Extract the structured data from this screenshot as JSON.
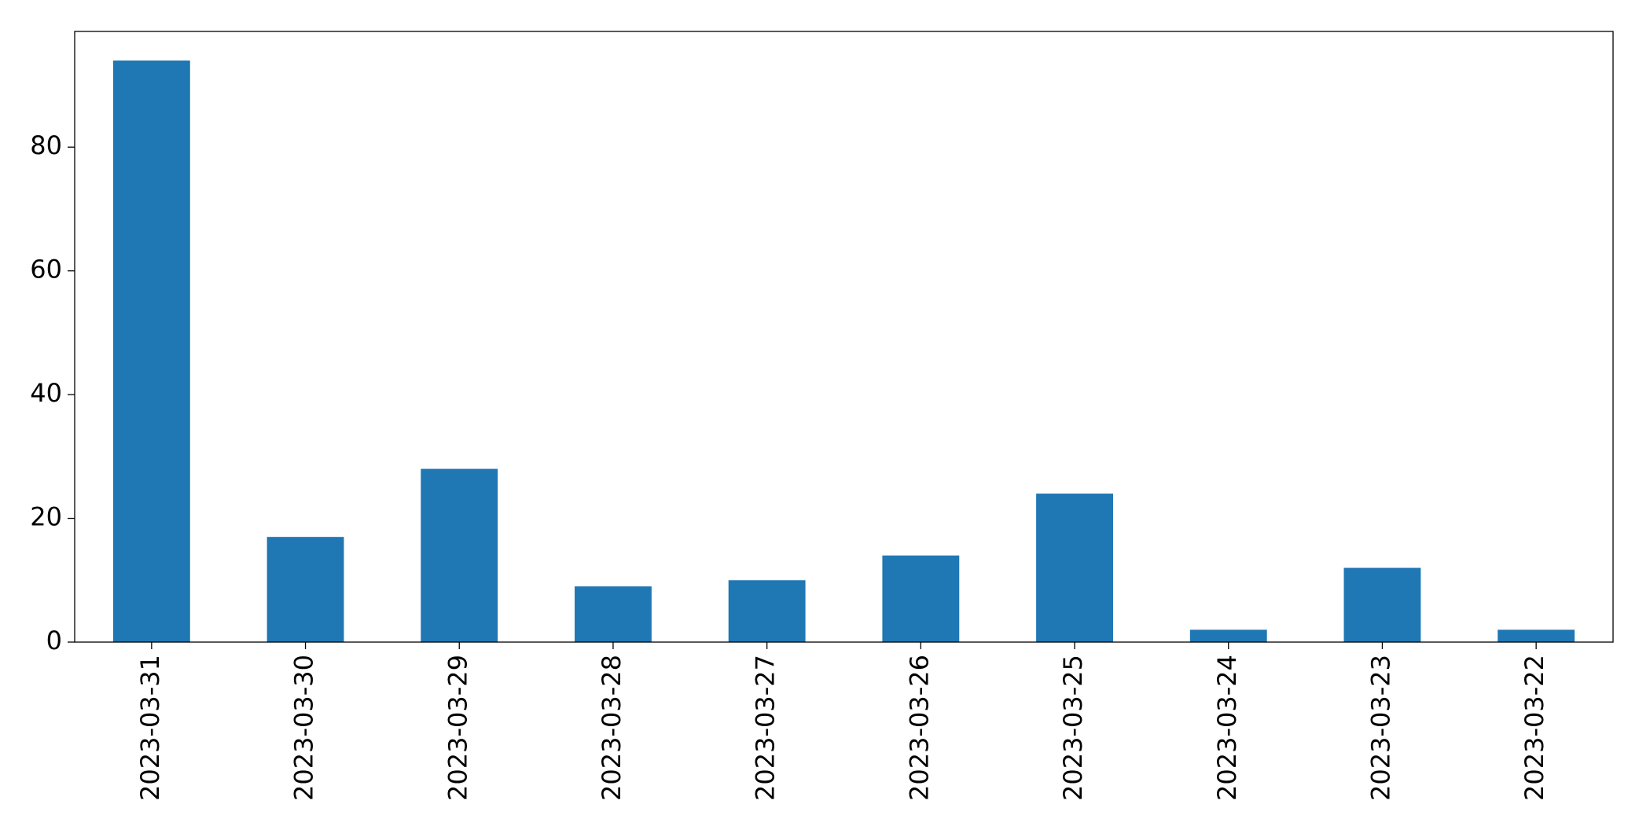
{
  "chart_data": {
    "type": "bar",
    "categories": [
      "2023-03-31",
      "2023-03-30",
      "2023-03-29",
      "2023-03-28",
      "2023-03-27",
      "2023-03-26",
      "2023-03-25",
      "2023-03-24",
      "2023-03-23",
      "2023-03-22"
    ],
    "values": [
      94,
      17,
      28,
      9,
      10,
      14,
      24,
      2,
      12,
      2
    ],
    "color": "#1f77b4",
    "ylim": [
      0,
      98.7
    ],
    "yticks": [
      0,
      20,
      40,
      60,
      80
    ],
    "grid": false
  }
}
